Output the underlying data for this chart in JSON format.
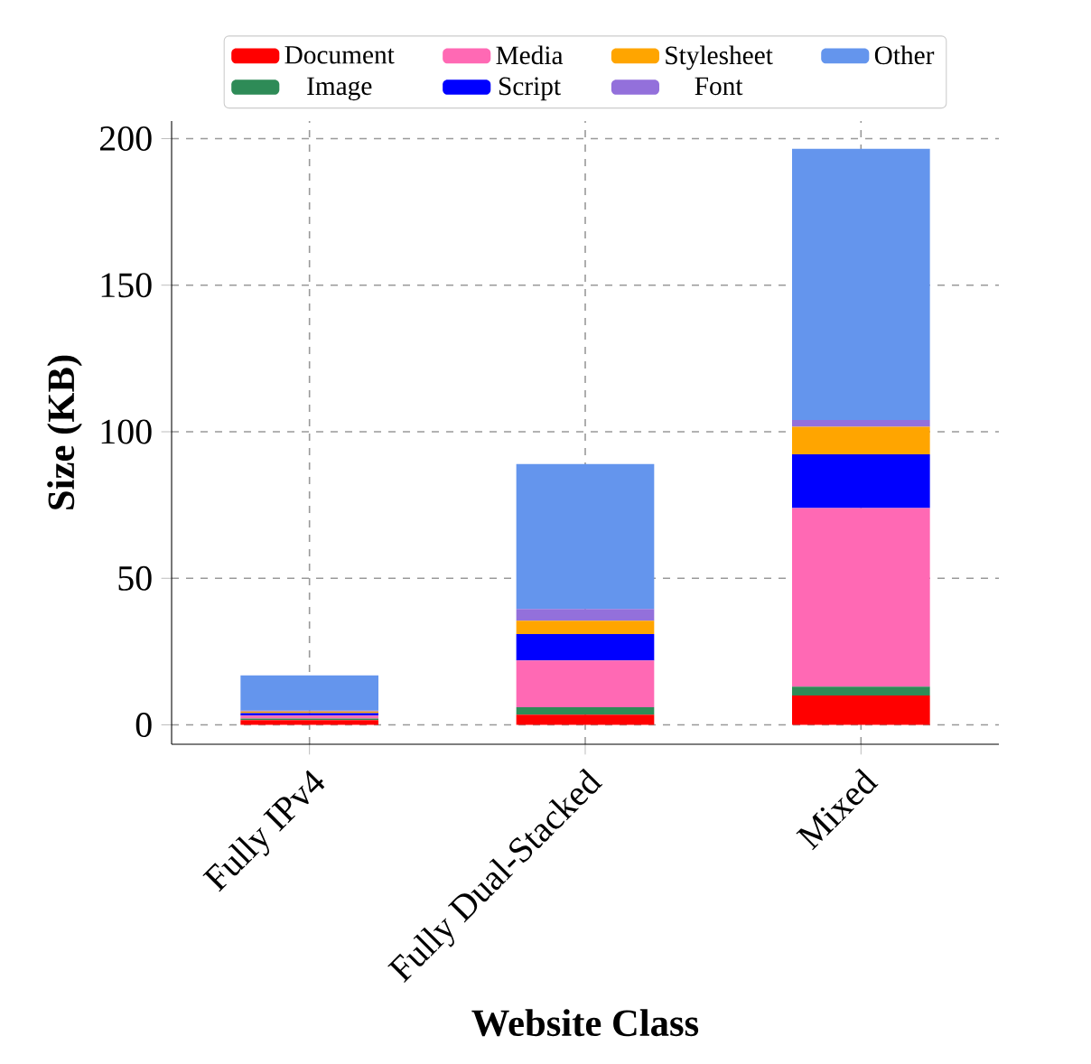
{
  "chart_data": {
    "type": "bar",
    "stacked": true,
    "xlabel": "Website Class",
    "ylabel": "Size (KB)",
    "categories": [
      "Fully IPv4",
      "Fully Dual-Stacked",
      "Mixed"
    ],
    "series": [
      {
        "name": "Document",
        "color": "#ff0000",
        "values": [
          1.6,
          3.5,
          10
        ]
      },
      {
        "name": "Image",
        "color": "#2e8b57",
        "values": [
          0.6,
          2.5,
          3
        ]
      },
      {
        "name": "Media",
        "color": "#ff69b4",
        "values": [
          1,
          16,
          61
        ]
      },
      {
        "name": "Script",
        "color": "#0000ff",
        "values": [
          0.8,
          9,
          18.3
        ]
      },
      {
        "name": "Stylesheet",
        "color": "#ffa500",
        "values": [
          0.6,
          4.5,
          9.4
        ]
      },
      {
        "name": "Font",
        "color": "#9370db",
        "values": [
          0.3,
          4,
          2.3
        ]
      },
      {
        "name": "Other",
        "color": "#6495ed",
        "values": [
          12,
          49.5,
          92.5
        ]
      }
    ],
    "ylim": [
      -6.6,
      206
    ],
    "yticks": [
      0,
      50,
      100,
      150,
      200
    ],
    "grid": true,
    "legend": "top"
  }
}
